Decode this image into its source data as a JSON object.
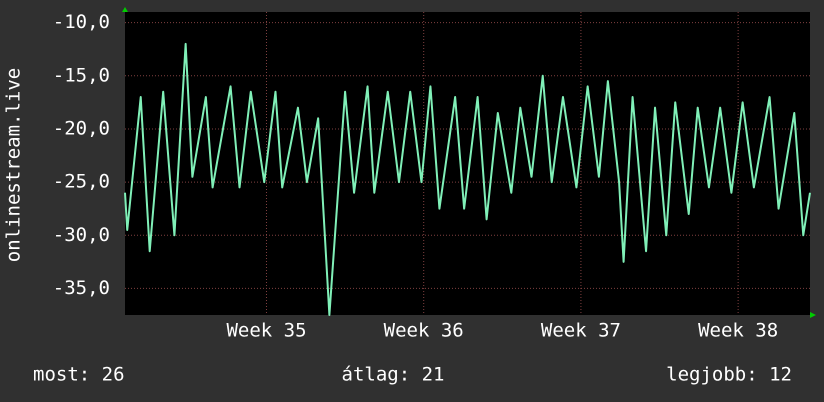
{
  "chart_data": {
    "type": "line",
    "y_label": "onlinestream.live",
    "x": [
      0,
      0.1,
      0.7,
      1.1,
      1.7,
      2.2,
      2.7,
      3.0,
      3.6,
      3.9,
      4.7,
      5.1,
      5.6,
      6.2,
      6.7,
      7.0,
      7.7,
      8.1,
      8.6,
      9.1,
      9.8,
      10.2,
      10.8,
      11.1,
      11.7,
      12.2,
      12.7,
      13.2,
      13.6,
      14.0,
      14.7,
      15.1,
      15.7,
      16.1,
      16.6,
      17.2,
      17.6,
      18.1,
      18.6,
      19.0,
      19.5,
      20.1,
      20.6,
      21.1,
      21.5,
      22.0,
      22.2,
      22.6,
      23.2,
      23.6,
      24.1,
      24.5,
      25.1,
      25.5,
      26.0,
      26.5,
      27.0,
      27.5,
      28.0,
      28.7,
      29.1,
      29.8,
      30.2,
      30.5
    ],
    "series": [
      {
        "color": "#80f0b8",
        "values": [
          -26,
          -29.5,
          -17,
          -31.5,
          -16.5,
          -30,
          -12,
          -24.5,
          -17,
          -25.5,
          -16,
          -25.5,
          -16.5,
          -25,
          -16.5,
          -25.5,
          -18,
          -25,
          -19,
          -37.5,
          -16.5,
          -26,
          -16,
          -26,
          -16.5,
          -25,
          -16.5,
          -25,
          -16,
          -27.5,
          -17,
          -27.5,
          -17,
          -28.5,
          -18.5,
          -26,
          -18,
          -24.5,
          -15,
          -25,
          -17,
          -25.5,
          -16,
          -24.5,
          -15.5,
          -25,
          -32.5,
          -17,
          -31.5,
          -18,
          -30,
          -17.5,
          -28,
          -18,
          -25.5,
          -18,
          -26,
          -17.5,
          -25.5,
          -17,
          -27.5,
          -18.5,
          -30,
          -26
        ]
      }
    ],
    "xlim": [
      0,
      30.5
    ],
    "xticks": [
      {
        "value": 6.3,
        "label": "Week 35"
      },
      {
        "value": 13.3,
        "label": "Week 36"
      },
      {
        "value": 20.3,
        "label": "Week 37"
      },
      {
        "value": 27.3,
        "label": "Week 38"
      }
    ],
    "ylim": [
      -37.5,
      -9
    ],
    "yticks": [
      {
        "value": -35,
        "label": "-35,0"
      },
      {
        "value": -30,
        "label": "-30,0"
      },
      {
        "value": -25,
        "label": "-25,0"
      },
      {
        "value": -20,
        "label": "-20,0"
      },
      {
        "value": -15,
        "label": "-15,0"
      },
      {
        "value": -10,
        "label": "-10,0"
      }
    ],
    "grid": true,
    "legend": [
      "most: 26",
      "átlag: 21",
      "legjobb: 12"
    ]
  }
}
